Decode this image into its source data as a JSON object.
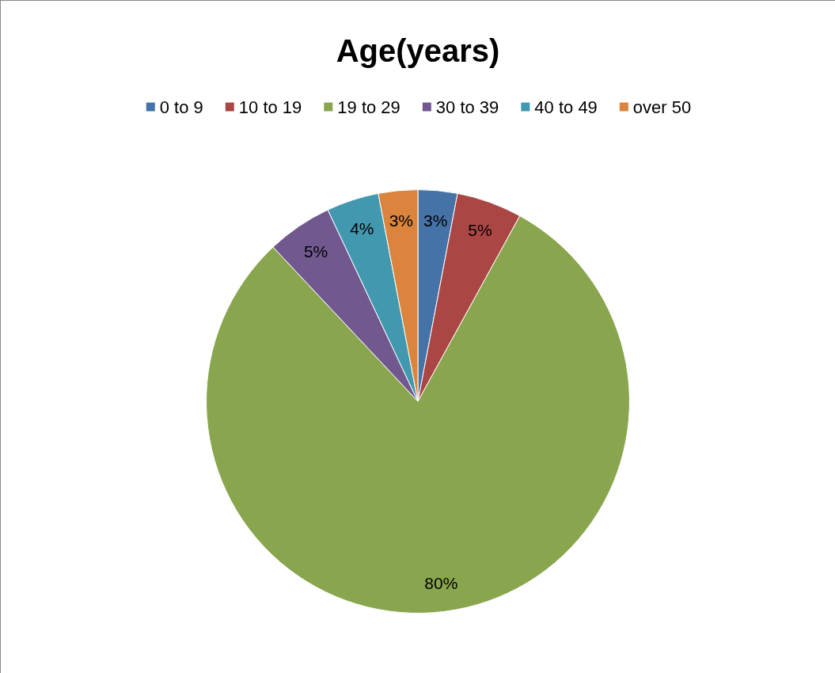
{
  "chart_data": {
    "type": "pie",
    "title": "Age(years)",
    "categories": [
      "0 to 9",
      "10 to 19",
      "19 to 29",
      "30 to 39",
      "40 to 49",
      "over 50"
    ],
    "values": [
      3,
      5,
      80,
      5,
      4,
      3
    ],
    "value_labels": [
      "3%",
      "5%",
      "80%",
      "5%",
      "4%",
      "3%"
    ],
    "colors": [
      "#4572a7",
      "#aa4643",
      "#89a54e",
      "#71588f",
      "#4198af",
      "#db843d"
    ],
    "legend": "top"
  }
}
